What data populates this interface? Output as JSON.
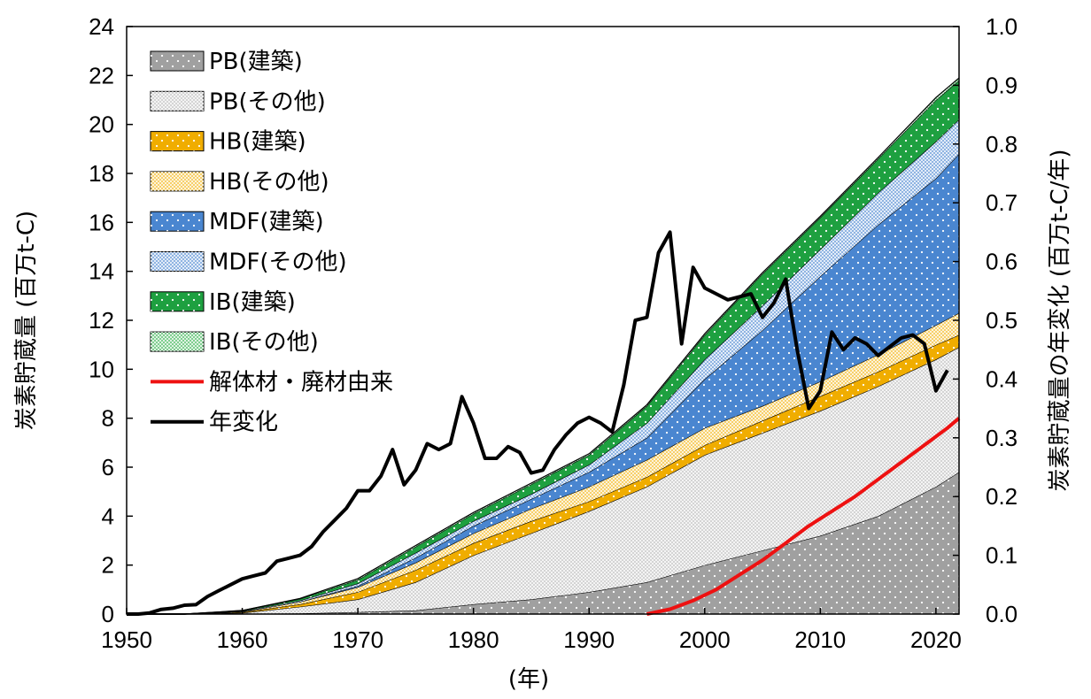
{
  "chart_data": {
    "type": "area",
    "y_left_label": "炭素貯蔵量 (百万t-C)",
    "y_right_label": "炭素貯蔵量の年変化 (百万t-C/年)",
    "x_label": "(年)",
    "x_range": [
      1950,
      2022
    ],
    "y_left_range": [
      0,
      24
    ],
    "y_right_range": [
      0,
      1.0
    ],
    "x_ticks": [
      "1950",
      "1960",
      "1970",
      "1980",
      "1990",
      "2000",
      "2010",
      "2020"
    ],
    "y_left_ticks": [
      "0",
      "2",
      "4",
      "6",
      "8",
      "10",
      "12",
      "14",
      "16",
      "18",
      "20",
      "22",
      "24"
    ],
    "y_right_ticks": [
      "0.0",
      "0.1",
      "0.2",
      "0.3",
      "0.4",
      "0.5",
      "0.6",
      "0.7",
      "0.8",
      "0.9",
      "1.0"
    ],
    "legend_position": "top-left",
    "stacked_series_note": "cumulative stacked tops",
    "years": [
      1950,
      1955,
      1960,
      1965,
      1970,
      1975,
      1980,
      1985,
      1990,
      1995,
      2000,
      2005,
      2010,
      2015,
      2020,
      2022
    ],
    "series": [
      {
        "name": "PB(建築)",
        "color": "#a0a0a0",
        "pattern": "dots-white",
        "top": [
          0,
          0,
          0.01,
          0.03,
          0.08,
          0.15,
          0.4,
          0.6,
          0.9,
          1.3,
          2.0,
          2.6,
          3.2,
          4.0,
          5.2,
          5.8
        ]
      },
      {
        "name": "PB(その他)",
        "color": "#d4d4d4",
        "pattern": "fine",
        "top": [
          0,
          0,
          0.05,
          0.3,
          0.6,
          1.3,
          2.4,
          3.3,
          4.2,
          5.2,
          6.5,
          7.4,
          8.3,
          9.3,
          10.4,
          10.9
        ]
      },
      {
        "name": "HB(建築)",
        "color": "#f0ad00",
        "pattern": "dots-white",
        "top": [
          0,
          0,
          0.08,
          0.4,
          0.9,
          1.8,
          2.9,
          3.8,
          4.6,
          5.6,
          6.9,
          7.9,
          8.9,
          9.9,
          11.0,
          11.4
        ]
      },
      {
        "name": "HB(その他)",
        "color": "#f7d06a",
        "pattern": "fine",
        "top": [
          0,
          0,
          0.1,
          0.5,
          1.1,
          2.1,
          3.3,
          4.3,
          5.2,
          6.3,
          7.6,
          8.5,
          9.5,
          10.6,
          11.8,
          12.3
        ]
      },
      {
        "name": "MDF(建築)",
        "color": "#4a86d0",
        "pattern": "dots-white",
        "top": [
          0,
          0,
          0.1,
          0.5,
          1.15,
          2.3,
          3.6,
          4.7,
          5.8,
          7.2,
          9.6,
          11.6,
          13.8,
          15.9,
          17.8,
          18.8
        ]
      },
      {
        "name": "MDF(その他)",
        "color": "#8fb4e2",
        "pattern": "fine",
        "top": [
          0,
          0,
          0.12,
          0.55,
          1.25,
          2.5,
          3.8,
          4.9,
          6.1,
          7.8,
          10.4,
          12.6,
          14.9,
          17.2,
          19.3,
          20.2
        ]
      },
      {
        "name": "IB(建築)",
        "color": "#1ea040",
        "pattern": "dots-white",
        "top": [
          0,
          0,
          0.14,
          0.62,
          1.4,
          2.75,
          4.1,
          5.3,
          6.5,
          8.5,
          11.4,
          13.9,
          16.2,
          18.6,
          21.0,
          21.8
        ]
      },
      {
        "name": "IB(その他)",
        "color": "#7fce8f",
        "pattern": "fine",
        "top": [
          0,
          0,
          0.15,
          0.64,
          1.45,
          2.8,
          4.15,
          5.35,
          6.55,
          8.55,
          11.45,
          13.95,
          16.25,
          18.65,
          21.1,
          21.9
        ]
      }
    ],
    "lines": [
      {
        "name": "解体材・廃材由来",
        "color": "#ee1111",
        "axis": "left",
        "x": [
          1995,
          1997,
          1999,
          2001,
          2003,
          2005,
          2007,
          2009,
          2011,
          2013,
          2015,
          2017,
          2019,
          2021,
          2022
        ],
        "y": [
          0,
          0.2,
          0.55,
          1.0,
          1.6,
          2.2,
          2.9,
          3.6,
          4.2,
          4.8,
          5.5,
          6.2,
          6.9,
          7.6,
          8.0
        ]
      },
      {
        "name": "年変化",
        "color": "#000000",
        "axis": "right",
        "x": [
          1950,
          1951,
          1952,
          1953,
          1954,
          1955,
          1956,
          1957,
          1958,
          1959,
          1960,
          1961,
          1962,
          1963,
          1964,
          1965,
          1966,
          1967,
          1968,
          1969,
          1970,
          1971,
          1972,
          1973,
          1974,
          1975,
          1976,
          1977,
          1978,
          1979,
          1980,
          1981,
          1982,
          1983,
          1984,
          1985,
          1986,
          1987,
          1988,
          1989,
          1990,
          1991,
          1992,
          1993,
          1994,
          1995,
          1996,
          1997,
          1998,
          1999,
          2000,
          2001,
          2002,
          2003,
          2004,
          2005,
          2006,
          2007,
          2008,
          2009,
          2010,
          2011,
          2012,
          2013,
          2014,
          2015,
          2016,
          2017,
          2018,
          2019,
          2020,
          2021
        ],
        "y": [
          0,
          0,
          0.002,
          0.008,
          0.01,
          0.015,
          0.016,
          0.03,
          0.04,
          0.05,
          0.06,
          0.065,
          0.07,
          0.09,
          0.095,
          0.1,
          0.115,
          0.14,
          0.16,
          0.18,
          0.21,
          0.21,
          0.235,
          0.28,
          0.22,
          0.245,
          0.29,
          0.28,
          0.29,
          0.37,
          0.325,
          0.265,
          0.265,
          0.285,
          0.275,
          0.24,
          0.245,
          0.28,
          0.305,
          0.325,
          0.335,
          0.325,
          0.31,
          0.39,
          0.5,
          0.505,
          0.615,
          0.65,
          0.46,
          0.59,
          0.555,
          0.545,
          0.535,
          0.54,
          0.545,
          0.505,
          0.53,
          0.57,
          0.45,
          0.35,
          0.38,
          0.48,
          0.45,
          0.47,
          0.46,
          0.44,
          0.455,
          0.47,
          0.475,
          0.46,
          0.38,
          0.415
        ]
      }
    ]
  }
}
